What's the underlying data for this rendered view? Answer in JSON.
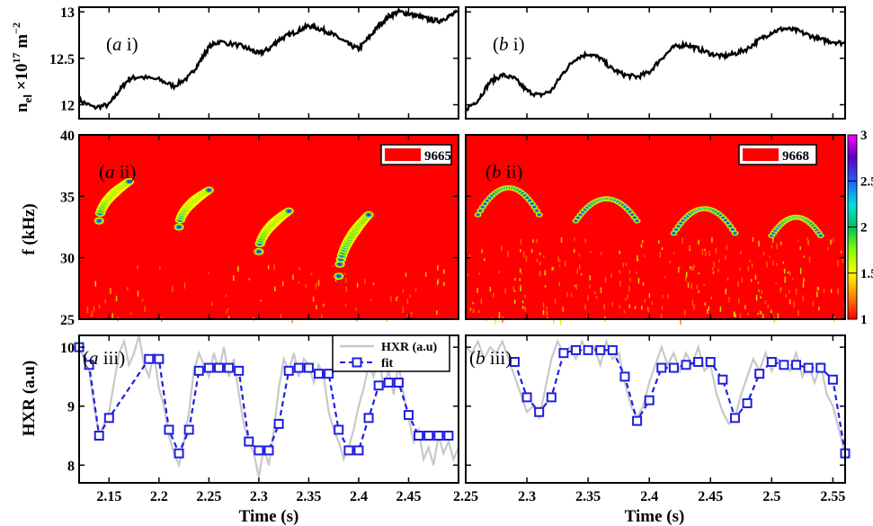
{
  "colors": {
    "spec_bg": "#ff0000",
    "trace": "#000000",
    "hxr": "#c8c8c8",
    "fit": "#1f1fe0",
    "colorbar": [
      "#ff0000",
      "#ff8000",
      "#ffff00",
      "#80ff00",
      "#00c060",
      "#00e0e0",
      "#2060ff",
      "#6000c0",
      "#ff00ff"
    ]
  },
  "chart_data": [
    {
      "id": "a_i",
      "type": "line",
      "panel_label_pre": "(a",
      "panel_label_post": " i)",
      "ylabel_main": "n",
      "ylabel_sub": "el",
      "ylabel_rest": " ×10",
      "ylabel_exp": "17",
      "ylabel_unit": " m",
      "ylabel_unit_exp": "−2",
      "xlim": [
        2.12,
        2.5
      ],
      "ylim": [
        11.85,
        13.05
      ],
      "yticks": [
        12,
        12.5,
        13
      ],
      "ytick_labels": [
        "12",
        "12.5",
        "13"
      ],
      "x": [
        2.12,
        2.135,
        2.15,
        2.16,
        2.17,
        2.18,
        2.2,
        2.215,
        2.23,
        2.24,
        2.25,
        2.26,
        2.28,
        2.29,
        2.3,
        2.31,
        2.32,
        2.33,
        2.34,
        2.35,
        2.36,
        2.37,
        2.38,
        2.39,
        2.4,
        2.41,
        2.42,
        2.43,
        2.44,
        2.45,
        2.46,
        2.47,
        2.48,
        2.49,
        2.5
      ],
      "y": [
        12.05,
        11.97,
        12.0,
        12.15,
        12.28,
        12.3,
        12.27,
        12.2,
        12.3,
        12.45,
        12.62,
        12.68,
        12.64,
        12.6,
        12.55,
        12.6,
        12.7,
        12.75,
        12.8,
        12.85,
        12.82,
        12.78,
        12.72,
        12.65,
        12.6,
        12.72,
        12.85,
        12.95,
        13.0,
        12.98,
        12.95,
        12.92,
        12.9,
        12.95,
        13.0
      ]
    },
    {
      "id": "b_i",
      "type": "line",
      "panel_label_pre": "(b",
      "panel_label_post": " i)",
      "xlim": [
        2.25,
        2.56
      ],
      "ylim": [
        11.85,
        13.05
      ],
      "x": [
        2.25,
        2.26,
        2.27,
        2.28,
        2.29,
        2.3,
        2.31,
        2.32,
        2.33,
        2.34,
        2.35,
        2.36,
        2.37,
        2.38,
        2.39,
        2.4,
        2.41,
        2.42,
        2.43,
        2.44,
        2.45,
        2.46,
        2.47,
        2.48,
        2.49,
        2.5,
        2.51,
        2.52,
        2.53,
        2.54,
        2.55,
        2.56
      ],
      "y": [
        11.95,
        12.05,
        12.25,
        12.32,
        12.28,
        12.15,
        12.1,
        12.15,
        12.35,
        12.5,
        12.55,
        12.5,
        12.38,
        12.32,
        12.3,
        12.35,
        12.5,
        12.62,
        12.65,
        12.6,
        12.55,
        12.52,
        12.55,
        12.6,
        12.7,
        12.78,
        12.82,
        12.8,
        12.75,
        12.7,
        12.68,
        12.66
      ]
    },
    {
      "id": "a_ii",
      "type": "heatmap",
      "panel_label_pre": "(a",
      "panel_label_post": " ii)",
      "shot": "9665",
      "ylabel": "f (kHz)",
      "xlim": [
        2.12,
        2.5
      ],
      "ylim": [
        25,
        40
      ],
      "yticks": [
        25,
        30,
        35,
        40
      ],
      "ytick_labels": [
        "25",
        "30",
        "35",
        "40"
      ],
      "chirps": [
        {
          "t0": 2.14,
          "t1": 2.17,
          "f0": 33.0,
          "f1": 36.2
        },
        {
          "t0": 2.22,
          "t1": 2.25,
          "f0": 32.5,
          "f1": 35.5
        },
        {
          "t0": 2.3,
          "t1": 2.33,
          "f0": 30.5,
          "f1": 33.8
        },
        {
          "t0": 2.38,
          "t1": 2.41,
          "f0": 28.5,
          "f1": 33.5
        }
      ]
    },
    {
      "id": "b_ii",
      "type": "heatmap",
      "panel_label_pre": "(b",
      "panel_label_post": " ii)",
      "shot": "9668",
      "xlim": [
        2.25,
        2.56
      ],
      "ylim": [
        25,
        40
      ],
      "colorbar_range": [
        1,
        3
      ],
      "colorbar_ticks": [
        1,
        1.5,
        2,
        2.5,
        3
      ],
      "colorbar_tick_labels": [
        "1",
        "1.5",
        "2",
        "2.5",
        "3"
      ],
      "arcs": [
        {
          "t0": 2.26,
          "t1": 2.31,
          "f_edge": 33.5,
          "f_peak": 35.7
        },
        {
          "t0": 2.34,
          "t1": 2.39,
          "f_edge": 33.0,
          "f_peak": 34.8
        },
        {
          "t0": 2.42,
          "t1": 2.47,
          "f_edge": 32.0,
          "f_peak": 34.0
        },
        {
          "t0": 2.5,
          "t1": 2.54,
          "f_edge": 31.8,
          "f_peak": 33.3
        }
      ]
    },
    {
      "id": "a_iii",
      "type": "line",
      "panel_label_pre": "(a",
      "panel_label_post": " iii)",
      "ylabel": "HXR (a.u)",
      "xlabel": "Time (s)",
      "xlim": [
        2.12,
        2.5
      ],
      "ylim": [
        7.7,
        10.2
      ],
      "yticks": [
        8,
        9,
        10
      ],
      "ytick_labels": [
        "8",
        "9",
        "10"
      ],
      "xticks": [
        2.15,
        2.2,
        2.25,
        2.3,
        2.35,
        2.4,
        2.45
      ],
      "xtick_labels": [
        "2.15",
        "2.2",
        "2.25",
        "2.3",
        "2.35",
        "2.4",
        "2.45"
      ],
      "legend": [
        {
          "name": "HXR (a.u)"
        },
        {
          "name": "fit"
        }
      ],
      "fit_x": [
        2.12,
        2.13,
        2.14,
        2.15,
        2.19,
        2.2,
        2.21,
        2.22,
        2.23,
        2.24,
        2.25,
        2.26,
        2.27,
        2.28,
        2.29,
        2.3,
        2.31,
        2.32,
        2.33,
        2.34,
        2.35,
        2.36,
        2.37,
        2.38,
        2.39,
        2.4,
        2.41,
        2.42,
        2.43,
        2.44,
        2.45,
        2.46,
        2.47,
        2.48,
        2.49
      ],
      "fit_y": [
        10.0,
        9.7,
        8.5,
        8.8,
        9.8,
        9.8,
        8.6,
        8.2,
        8.6,
        9.6,
        9.65,
        9.65,
        9.65,
        9.6,
        8.4,
        8.25,
        8.25,
        8.7,
        9.6,
        9.65,
        9.65,
        9.55,
        9.55,
        8.6,
        8.25,
        8.25,
        8.8,
        9.35,
        9.4,
        9.4,
        8.85,
        8.5,
        8.5,
        8.5,
        8.5
      ],
      "hxr_x": [
        2.12,
        2.125,
        2.13,
        2.135,
        2.14,
        2.145,
        2.15,
        2.155,
        2.16,
        2.165,
        2.17,
        2.175,
        2.18,
        2.185,
        2.19,
        2.195,
        2.2,
        2.205,
        2.21,
        2.215,
        2.22,
        2.225,
        2.23,
        2.235,
        2.24,
        2.245,
        2.25,
        2.255,
        2.26,
        2.265,
        2.27,
        2.275,
        2.28,
        2.285,
        2.29,
        2.295,
        2.3,
        2.305,
        2.31,
        2.315,
        2.32,
        2.325,
        2.33,
        2.335,
        2.34,
        2.345,
        2.35,
        2.355,
        2.36,
        2.365,
        2.37,
        2.375,
        2.38,
        2.385,
        2.39,
        2.395,
        2.4,
        2.405,
        2.41,
        2.415,
        2.42,
        2.425,
        2.43,
        2.435,
        2.44,
        2.445,
        2.45,
        2.455,
        2.46,
        2.465,
        2.47,
        2.475,
        2.48,
        2.485,
        2.49,
        2.495,
        2.5
      ],
      "hxr_y": [
        10.0,
        9.8,
        9.6,
        9.0,
        8.5,
        8.7,
        8.9,
        9.4,
        9.9,
        10.1,
        9.7,
        9.9,
        10.2,
        9.7,
        9.5,
        9.9,
        9.3,
        9.0,
        8.5,
        8.2,
        8.0,
        8.4,
        8.9,
        9.6,
        9.9,
        9.7,
        9.5,
        9.9,
        9.6,
        10.0,
        9.5,
        9.8,
        9.2,
        8.7,
        8.4,
        8.2,
        7.8,
        8.3,
        8.0,
        8.6,
        9.3,
        9.8,
        9.6,
        9.9,
        9.5,
        9.8,
        9.7,
        9.4,
        9.7,
        9.5,
        8.9,
        8.6,
        8.4,
        8.1,
        8.3,
        8.6,
        9.0,
        9.3,
        9.7,
        9.5,
        9.9,
        9.3,
        9.6,
        9.2,
        9.7,
        9.2,
        8.8,
        8.4,
        8.6,
        8.1,
        8.3,
        8.0,
        8.5,
        8.2,
        8.4,
        8.1,
        8.3
      ]
    },
    {
      "id": "b_iii",
      "type": "line",
      "panel_label_pre": "(b",
      "panel_label_post": " iii)",
      "xlabel": "Time (s)",
      "xlim": [
        2.25,
        2.56
      ],
      "ylim": [
        7.7,
        10.2
      ],
      "xticks": [
        2.25,
        2.3,
        2.35,
        2.4,
        2.45,
        2.5,
        2.55
      ],
      "xtick_labels": [
        "2.25",
        "2.3",
        "2.35",
        "2.4",
        "2.45",
        "2.5",
        "2.55"
      ],
      "fit_x": [
        2.29,
        2.3,
        2.31,
        2.32,
        2.33,
        2.34,
        2.35,
        2.36,
        2.37,
        2.38,
        2.39,
        2.4,
        2.41,
        2.42,
        2.43,
        2.44,
        2.45,
        2.46,
        2.47,
        2.48,
        2.49,
        2.5,
        2.51,
        2.52,
        2.53,
        2.54,
        2.55,
        2.56
      ],
      "fit_y": [
        9.75,
        9.15,
        8.9,
        9.15,
        9.9,
        9.95,
        9.95,
        9.95,
        9.95,
        9.5,
        8.75,
        9.1,
        9.65,
        9.65,
        9.7,
        9.75,
        9.75,
        9.45,
        8.8,
        9.05,
        9.55,
        9.75,
        9.7,
        9.7,
        9.65,
        9.65,
        9.45,
        8.2
      ],
      "hxr_x": [
        2.25,
        2.255,
        2.26,
        2.265,
        2.27,
        2.275,
        2.28,
        2.285,
        2.29,
        2.295,
        2.3,
        2.305,
        2.31,
        2.315,
        2.32,
        2.325,
        2.33,
        2.335,
        2.34,
        2.345,
        2.35,
        2.355,
        2.36,
        2.365,
        2.37,
        2.375,
        2.38,
        2.385,
        2.39,
        2.395,
        2.4,
        2.405,
        2.41,
        2.415,
        2.42,
        2.425,
        2.43,
        2.435,
        2.44,
        2.445,
        2.45,
        2.455,
        2.46,
        2.465,
        2.47,
        2.475,
        2.48,
        2.485,
        2.49,
        2.495,
        2.5,
        2.505,
        2.51,
        2.515,
        2.52,
        2.525,
        2.53,
        2.535,
        2.54,
        2.545,
        2.55,
        2.555,
        2.56
      ],
      "hxr_y": [
        10.0,
        9.9,
        10.1,
        9.8,
        10.0,
        9.9,
        10.1,
        9.8,
        9.5,
        9.2,
        8.9,
        9.0,
        8.8,
        9.3,
        9.8,
        10.1,
        9.9,
        10.0,
        9.8,
        10.1,
        9.9,
        10.0,
        9.7,
        10.1,
        9.8,
        9.9,
        9.4,
        9.0,
        8.8,
        9.0,
        9.4,
        9.7,
        10.0,
        9.7,
        9.9,
        9.6,
        9.9,
        9.7,
        10.0,
        9.6,
        9.7,
        9.2,
        8.9,
        8.7,
        8.8,
        9.2,
        9.5,
        9.8,
        9.6,
        9.9,
        9.6,
        9.8,
        9.7,
        9.6,
        9.9,
        9.5,
        9.7,
        9.4,
        9.7,
        9.2,
        9.0,
        8.6,
        8.2
      ]
    }
  ]
}
